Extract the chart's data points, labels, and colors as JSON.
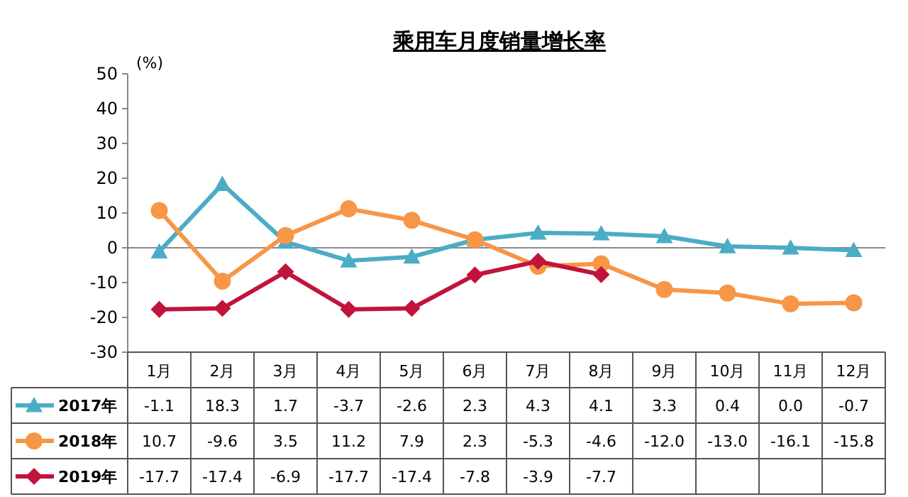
{
  "chart_data": {
    "type": "line",
    "title": "乘用车月度销量增长率",
    "ylabel": "(%)",
    "categories": [
      "1月",
      "2月",
      "3月",
      "4月",
      "5月",
      "6月",
      "7月",
      "8月",
      "9月",
      "10月",
      "11月",
      "12月"
    ],
    "ylim": [
      -30,
      50
    ],
    "yticks": [
      -30,
      -20,
      -10,
      0,
      10,
      20,
      30,
      40,
      50
    ],
    "legend": "bottom",
    "series": [
      {
        "name": "2017年",
        "color": "#4bacc6",
        "marker": "triangle",
        "values": [
          -1.1,
          18.3,
          1.7,
          -3.7,
          -2.6,
          2.3,
          4.3,
          4.1,
          3.3,
          0.4,
          0.0,
          -0.7
        ],
        "value_labels": [
          "-1.1",
          "18.3",
          "1.7",
          "-3.7",
          "-2.6",
          "2.3",
          "4.3",
          "4.1",
          "3.3",
          "0.4",
          "0.0",
          "-0.7"
        ]
      },
      {
        "name": "2018年",
        "color": "#f79646",
        "marker": "circle",
        "values": [
          10.7,
          -9.6,
          3.5,
          11.2,
          7.9,
          2.3,
          -5.3,
          -4.6,
          -12.0,
          -13.0,
          -16.1,
          -15.8
        ],
        "value_labels": [
          "10.7",
          "-9.6",
          "3.5",
          "11.2",
          "7.9",
          "2.3",
          "-5.3",
          "-4.6",
          "-12.0",
          "-13.0",
          "-16.1",
          "-15.8"
        ]
      },
      {
        "name": "2019年",
        "color": "#c0143c",
        "marker": "diamond",
        "values": [
          -17.7,
          -17.4,
          -6.9,
          -17.7,
          -17.4,
          -7.8,
          -3.9,
          -7.7,
          null,
          null,
          null,
          null
        ],
        "value_labels": [
          "-17.7",
          "-17.4",
          "-6.9",
          "-17.7",
          "-17.4",
          "-7.8",
          "-3.9",
          "-7.7",
          null,
          null,
          null,
          null
        ]
      }
    ]
  }
}
